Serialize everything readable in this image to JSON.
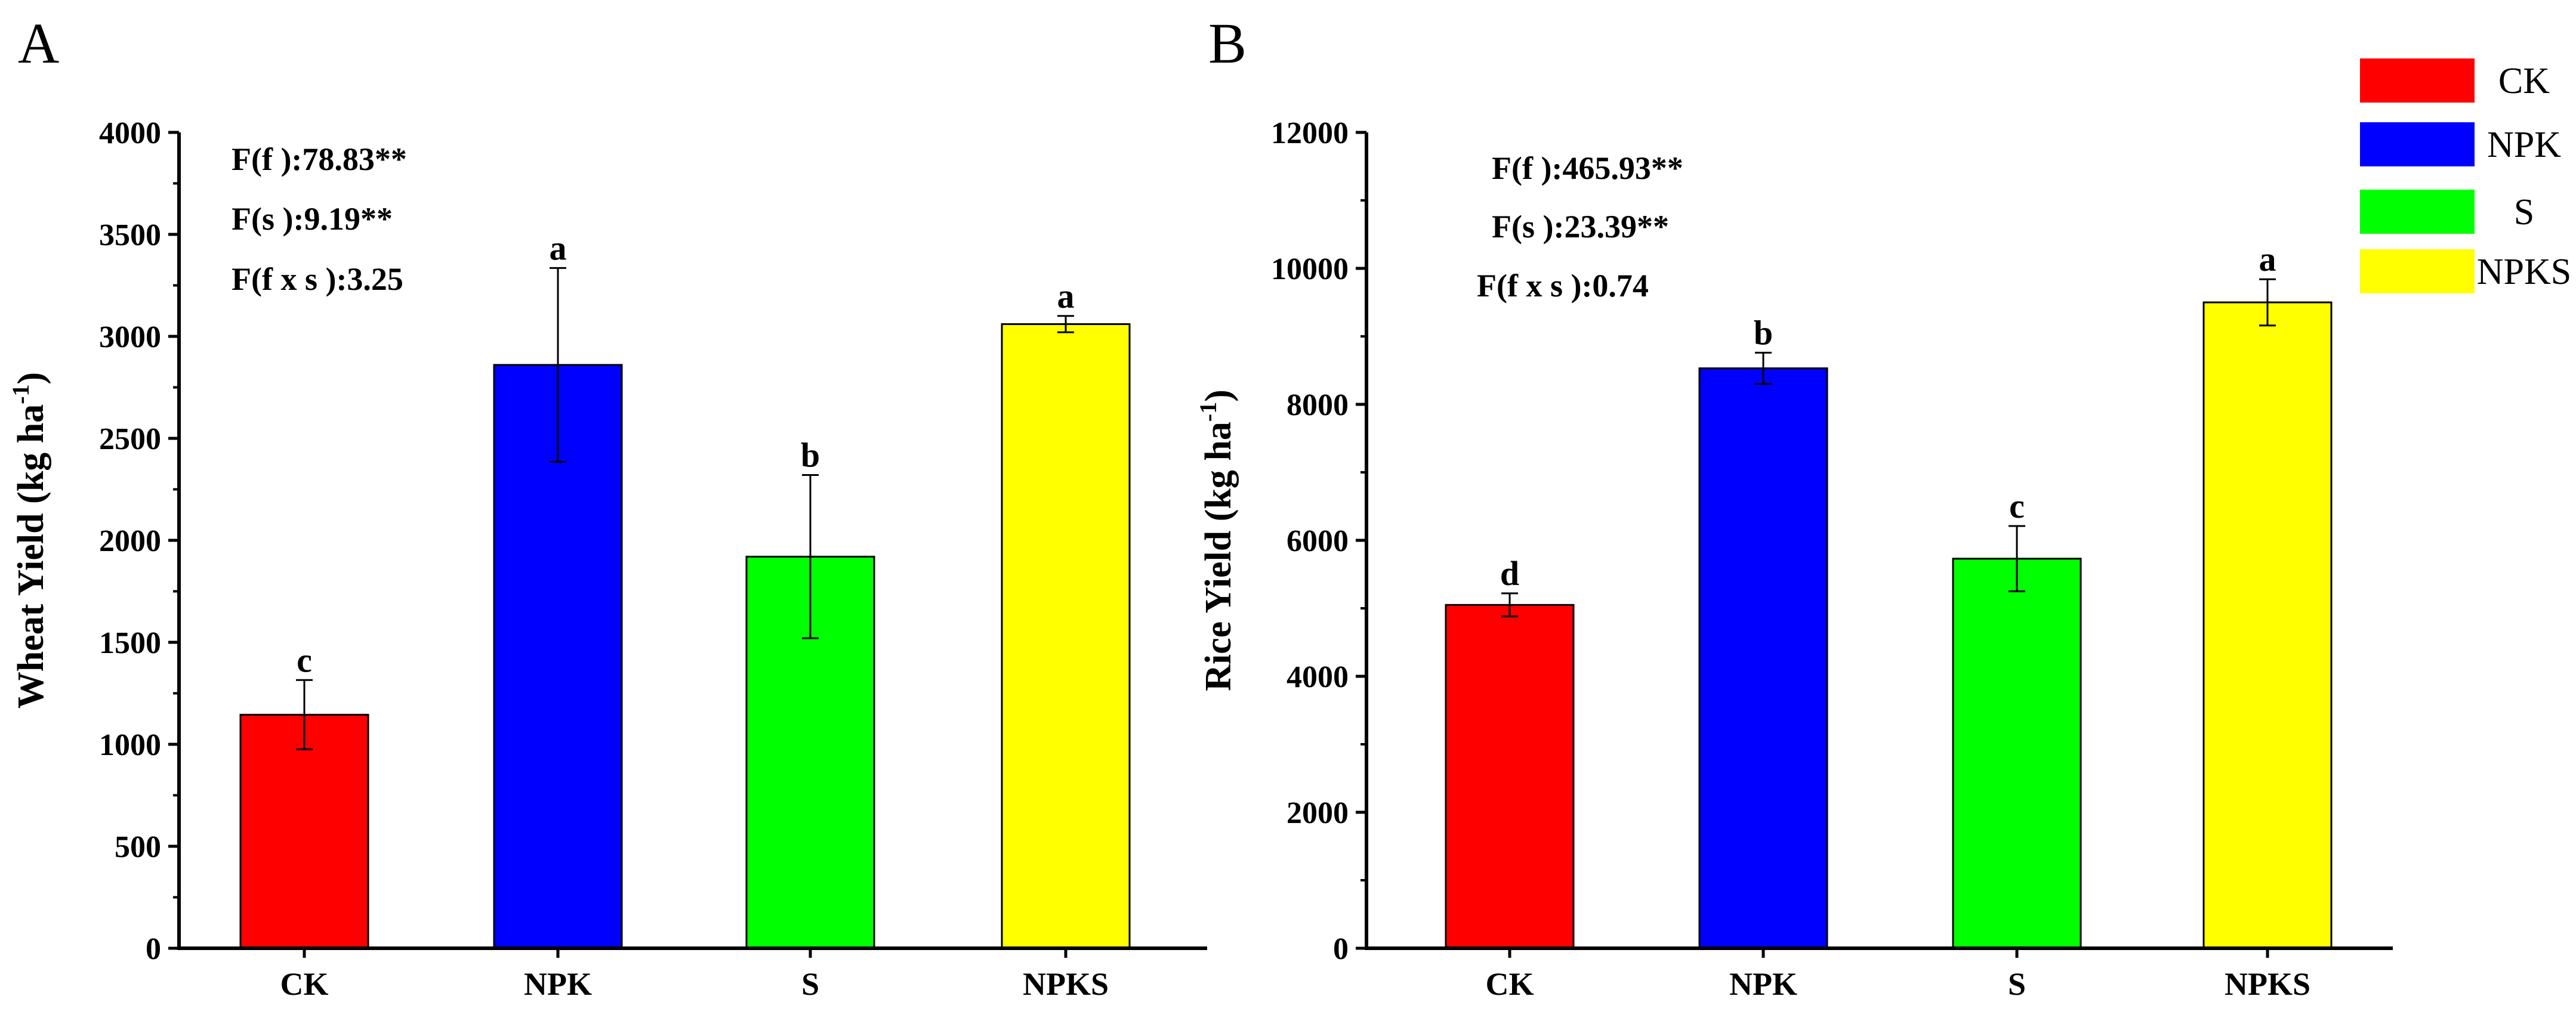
{
  "chart_data": [
    {
      "type": "bar",
      "panel_label": "A",
      "categories": [
        "CK",
        "NPK",
        "S",
        "NPKS"
      ],
      "values": [
        1145,
        2860,
        1920,
        3060
      ],
      "errors": [
        170,
        475,
        400,
        40
      ],
      "significance_letters": [
        "c",
        "a",
        "b",
        "a"
      ],
      "colors": [
        "#ff0000",
        "#0000ff",
        "#00ff00",
        "#ffff00"
      ],
      "ylabel": "Wheat Yield (kg ha",
      "ylabel_sup": "-1",
      "ylabel_end": ")",
      "ylim": [
        0,
        4000
      ],
      "yticks": [
        "0",
        "500",
        "1000",
        "1500",
        "2000",
        "2500",
        "3000",
        "3500",
        "4000"
      ],
      "annotations": [
        "F(f ):78.83**",
        "F(s ):9.19**",
        "F(f  x s ):3.25"
      ]
    },
    {
      "type": "bar",
      "panel_label": "B",
      "categories": [
        "CK",
        "NPK",
        "S",
        "NPKS"
      ],
      "values": [
        5050,
        8530,
        5730,
        9500
      ],
      "errors": [
        170,
        230,
        480,
        340
      ],
      "significance_letters": [
        "d",
        "b",
        "c",
        "a"
      ],
      "colors": [
        "#ff0000",
        "#0000ff",
        "#00ff00",
        "#ffff00"
      ],
      "ylabel": "Rice Yield (kg ha",
      "ylabel_sup": "-1",
      "ylabel_end": ")",
      "ylim": [
        0,
        12000
      ],
      "yticks": [
        "0",
        "2000",
        "4000",
        "6000",
        "8000",
        "10000",
        "12000"
      ],
      "annotations": [
        "F(f ):465.93**",
        "F(s ):23.39**",
        "F(f  x s ):0.74"
      ]
    }
  ],
  "legend": {
    "placement": "top-right",
    "items": [
      {
        "label": "CK",
        "color": "#ff0000"
      },
      {
        "label": "NPK",
        "color": "#0000ff"
      },
      {
        "label": "S",
        "color": "#00ff00"
      },
      {
        "label": "NPKS",
        "color": "#ffff00"
      }
    ]
  }
}
